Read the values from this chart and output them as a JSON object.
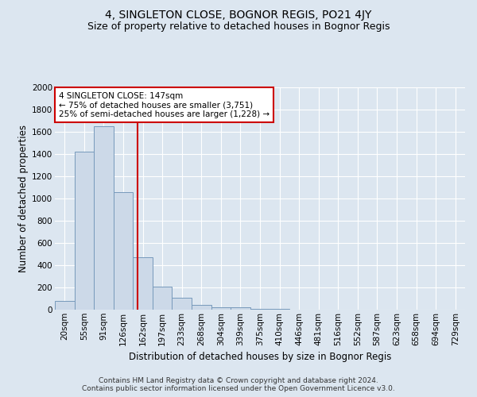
{
  "title": "4, SINGLETON CLOSE, BOGNOR REGIS, PO21 4JY",
  "subtitle": "Size of property relative to detached houses in Bognor Regis",
  "xlabel": "Distribution of detached houses by size in Bognor Regis",
  "ylabel": "Number of detached properties",
  "footer_line1": "Contains HM Land Registry data © Crown copyright and database right 2024.",
  "footer_line2": "Contains public sector information licensed under the Open Government Licence v3.0.",
  "bar_labels": [
    "20sqm",
    "55sqm",
    "91sqm",
    "126sqm",
    "162sqm",
    "197sqm",
    "233sqm",
    "268sqm",
    "304sqm",
    "339sqm",
    "375sqm",
    "410sqm",
    "446sqm",
    "481sqm",
    "516sqm",
    "552sqm",
    "587sqm",
    "623sqm",
    "658sqm",
    "694sqm",
    "729sqm"
  ],
  "bar_values": [
    80,
    1420,
    1650,
    1060,
    470,
    205,
    108,
    40,
    25,
    18,
    10,
    5,
    3,
    2,
    2,
    1,
    0,
    0,
    0,
    0,
    0
  ],
  "bar_color": "#ccd9e8",
  "bar_edge_color": "#7799bb",
  "property_line_x": 3.72,
  "property_line_label": "4 SINGLETON CLOSE: 147sqm",
  "annotation_line1": "← 75% of detached houses are smaller (3,751)",
  "annotation_line2": "25% of semi-detached houses are larger (1,228) →",
  "annotation_box_color": "#ffffff",
  "annotation_box_edge_color": "#cc0000",
  "property_line_color": "#cc0000",
  "ylim": [
    0,
    2000
  ],
  "yticks": [
    0,
    200,
    400,
    600,
    800,
    1000,
    1200,
    1400,
    1600,
    1800,
    2000
  ],
  "background_color": "#dce6f0",
  "grid_color": "#ffffff",
  "title_fontsize": 10,
  "subtitle_fontsize": 9,
  "axis_label_fontsize": 8.5,
  "tick_fontsize": 7.5,
  "annotation_fontsize": 7.5,
  "footer_fontsize": 6.5
}
